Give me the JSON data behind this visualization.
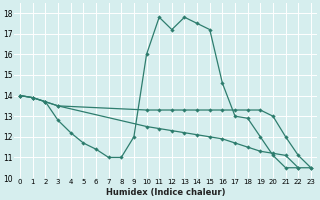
{
  "xlabel": "Humidex (Indice chaleur)",
  "background_color": "#d6eeee",
  "grid_color": "#c8dada",
  "line_color": "#2e7d6e",
  "xlim": [
    -0.5,
    23.5
  ],
  "ylim": [
    10,
    18.5
  ],
  "yticks": [
    10,
    11,
    12,
    13,
    14,
    15,
    16,
    17,
    18
  ],
  "xticks": [
    0,
    1,
    2,
    3,
    4,
    5,
    6,
    7,
    8,
    9,
    10,
    11,
    12,
    13,
    14,
    15,
    16,
    17,
    18,
    19,
    20,
    21,
    22,
    23
  ],
  "series": [
    {
      "x": [
        0,
        1,
        2,
        3,
        4,
        5,
        6,
        7,
        8,
        9,
        10,
        11,
        12,
        13,
        14,
        15,
        16,
        17,
        18,
        19,
        20,
        21,
        22
      ],
      "y": [
        14.0,
        13.9,
        13.7,
        12.8,
        12.2,
        11.7,
        11.4,
        11.0,
        11.0,
        12.0,
        16.0,
        17.8,
        17.2,
        17.8,
        17.5,
        17.2,
        14.6,
        13.0,
        12.9,
        12.0,
        11.1,
        10.5,
        10.5
      ]
    },
    {
      "x": [
        0,
        1,
        2,
        3,
        10,
        11,
        12,
        13,
        14,
        15,
        16,
        17,
        18,
        19,
        20,
        21,
        22,
        23
      ],
      "y": [
        14.0,
        13.9,
        13.7,
        13.5,
        13.3,
        13.3,
        13.3,
        13.3,
        13.3,
        13.3,
        13.3,
        13.3,
        13.3,
        13.3,
        13.0,
        12.0,
        11.1,
        10.5
      ]
    },
    {
      "x": [
        0,
        1,
        2,
        3,
        10,
        11,
        12,
        13,
        14,
        15,
        16,
        17,
        18,
        19,
        20,
        21,
        22,
        23
      ],
      "y": [
        14.0,
        13.9,
        13.7,
        13.5,
        12.5,
        12.4,
        12.3,
        12.2,
        12.1,
        12.0,
        11.9,
        11.7,
        11.5,
        11.3,
        11.2,
        11.1,
        10.5,
        10.5
      ]
    }
  ]
}
